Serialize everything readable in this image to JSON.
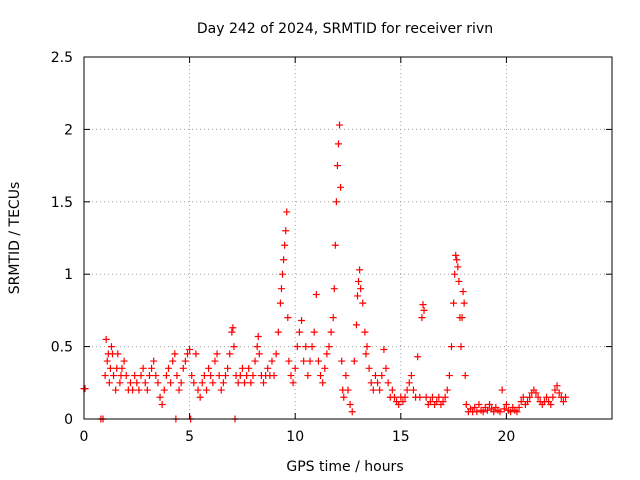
{
  "chart_data": {
    "type": "scatter",
    "title": "Day 242 of 2024, SRMTID for receiver rivn",
    "xlabel": "GPS time / hours",
    "ylabel": "SRMTID / TECUs",
    "xlim": [
      0,
      25
    ],
    "ylim": [
      0,
      2.5
    ],
    "xticks": [
      0,
      5,
      10,
      15,
      20
    ],
    "xtick_labels": [
      "0",
      "5",
      "10",
      "15",
      "20"
    ],
    "yticks": [
      0,
      0.5,
      1,
      1.5,
      2,
      2.5
    ],
    "ytick_labels": [
      "0",
      "0.5",
      "1",
      "1.5",
      "2",
      "2.5"
    ],
    "grid": true,
    "marker": "+",
    "series": [
      {
        "name": "SRMTID",
        "color": "#ff0000",
        "points": [
          [
            0.0,
            0.21
          ],
          [
            0.05,
            0.21
          ],
          [
            0.8,
            0.0
          ],
          [
            0.9,
            0.0
          ],
          [
            1.0,
            0.3
          ],
          [
            1.05,
            0.55
          ],
          [
            1.1,
            0.4
          ],
          [
            1.15,
            0.45
          ],
          [
            1.2,
            0.25
          ],
          [
            1.25,
            0.35
          ],
          [
            1.3,
            0.5
          ],
          [
            1.35,
            0.45
          ],
          [
            1.4,
            0.3
          ],
          [
            1.5,
            0.2
          ],
          [
            1.55,
            0.35
          ],
          [
            1.6,
            0.45
          ],
          [
            1.7,
            0.25
          ],
          [
            1.75,
            0.3
          ],
          [
            1.8,
            0.35
          ],
          [
            1.9,
            0.4
          ],
          [
            2.0,
            0.3
          ],
          [
            2.1,
            0.2
          ],
          [
            2.2,
            0.25
          ],
          [
            2.3,
            0.2
          ],
          [
            2.4,
            0.3
          ],
          [
            2.5,
            0.25
          ],
          [
            2.6,
            0.2
          ],
          [
            2.7,
            0.3
          ],
          [
            2.8,
            0.35
          ],
          [
            2.9,
            0.25
          ],
          [
            3.0,
            0.2
          ],
          [
            3.1,
            0.3
          ],
          [
            3.2,
            0.35
          ],
          [
            3.3,
            0.4
          ],
          [
            3.4,
            0.3
          ],
          [
            3.5,
            0.25
          ],
          [
            3.6,
            0.15
          ],
          [
            3.7,
            0.1
          ],
          [
            3.8,
            0.2
          ],
          [
            3.9,
            0.3
          ],
          [
            4.0,
            0.35
          ],
          [
            4.1,
            0.25
          ],
          [
            4.2,
            0.4
          ],
          [
            4.3,
            0.45
          ],
          [
            4.35,
            0.0
          ],
          [
            4.4,
            0.3
          ],
          [
            4.5,
            0.2
          ],
          [
            4.6,
            0.25
          ],
          [
            4.7,
            0.35
          ],
          [
            4.8,
            0.4
          ],
          [
            4.9,
            0.45
          ],
          [
            5.0,
            0.48
          ],
          [
            5.05,
            0.0
          ],
          [
            5.1,
            0.3
          ],
          [
            5.2,
            0.25
          ],
          [
            5.3,
            0.45
          ],
          [
            5.4,
            0.2
          ],
          [
            5.5,
            0.15
          ],
          [
            5.6,
            0.25
          ],
          [
            5.7,
            0.3
          ],
          [
            5.8,
            0.2
          ],
          [
            5.9,
            0.35
          ],
          [
            6.0,
            0.3
          ],
          [
            6.1,
            0.25
          ],
          [
            6.2,
            0.4
          ],
          [
            6.3,
            0.45
          ],
          [
            6.4,
            0.3
          ],
          [
            6.5,
            0.2
          ],
          [
            6.6,
            0.25
          ],
          [
            6.7,
            0.3
          ],
          [
            6.8,
            0.35
          ],
          [
            6.9,
            0.45
          ],
          [
            7.0,
            0.6
          ],
          [
            7.05,
            0.63
          ],
          [
            7.1,
            0.5
          ],
          [
            7.15,
            0.0
          ],
          [
            7.2,
            0.3
          ],
          [
            7.3,
            0.25
          ],
          [
            7.4,
            0.3
          ],
          [
            7.5,
            0.35
          ],
          [
            7.6,
            0.25
          ],
          [
            7.7,
            0.3
          ],
          [
            7.8,
            0.35
          ],
          [
            7.9,
            0.25
          ],
          [
            8.0,
            0.3
          ],
          [
            8.1,
            0.4
          ],
          [
            8.2,
            0.5
          ],
          [
            8.25,
            0.57
          ],
          [
            8.3,
            0.45
          ],
          [
            8.4,
            0.3
          ],
          [
            8.5,
            0.25
          ],
          [
            8.6,
            0.3
          ],
          [
            8.7,
            0.35
          ],
          [
            8.8,
            0.3
          ],
          [
            8.9,
            0.4
          ],
          [
            9.0,
            0.3
          ],
          [
            9.1,
            0.45
          ],
          [
            9.2,
            0.6
          ],
          [
            9.3,
            0.8
          ],
          [
            9.35,
            0.9
          ],
          [
            9.4,
            1.0
          ],
          [
            9.45,
            1.1
          ],
          [
            9.5,
            1.2
          ],
          [
            9.55,
            1.3
          ],
          [
            9.6,
            1.43
          ],
          [
            9.65,
            0.7
          ],
          [
            9.7,
            0.4
          ],
          [
            9.8,
            0.3
          ],
          [
            9.9,
            0.25
          ],
          [
            10.0,
            0.35
          ],
          [
            10.1,
            0.5
          ],
          [
            10.2,
            0.6
          ],
          [
            10.3,
            0.68
          ],
          [
            10.4,
            0.4
          ],
          [
            10.5,
            0.5
          ],
          [
            10.6,
            0.3
          ],
          [
            10.7,
            0.4
          ],
          [
            10.8,
            0.5
          ],
          [
            10.9,
            0.6
          ],
          [
            11.0,
            0.86
          ],
          [
            11.1,
            0.4
          ],
          [
            11.2,
            0.3
          ],
          [
            11.3,
            0.25
          ],
          [
            11.4,
            0.35
          ],
          [
            11.5,
            0.45
          ],
          [
            11.6,
            0.5
          ],
          [
            11.7,
            0.6
          ],
          [
            11.8,
            0.7
          ],
          [
            11.85,
            0.9
          ],
          [
            11.9,
            1.2
          ],
          [
            11.95,
            1.5
          ],
          [
            12.0,
            1.75
          ],
          [
            12.05,
            1.9
          ],
          [
            12.1,
            2.03
          ],
          [
            12.15,
            1.6
          ],
          [
            12.2,
            0.4
          ],
          [
            12.25,
            0.2
          ],
          [
            12.3,
            0.15
          ],
          [
            12.4,
            0.3
          ],
          [
            12.5,
            0.2
          ],
          [
            12.6,
            0.1
          ],
          [
            12.7,
            0.05
          ],
          [
            12.8,
            0.4
          ],
          [
            12.9,
            0.65
          ],
          [
            12.95,
            0.85
          ],
          [
            13.0,
            0.95
          ],
          [
            13.05,
            1.03
          ],
          [
            13.1,
            0.9
          ],
          [
            13.2,
            0.8
          ],
          [
            13.3,
            0.6
          ],
          [
            13.35,
            0.45
          ],
          [
            13.4,
            0.5
          ],
          [
            13.5,
            0.35
          ],
          [
            13.6,
            0.25
          ],
          [
            13.7,
            0.2
          ],
          [
            13.8,
            0.3
          ],
          [
            13.9,
            0.25
          ],
          [
            14.0,
            0.2
          ],
          [
            14.1,
            0.3
          ],
          [
            14.2,
            0.48
          ],
          [
            14.3,
            0.35
          ],
          [
            14.4,
            0.25
          ],
          [
            14.5,
            0.15
          ],
          [
            14.6,
            0.2
          ],
          [
            14.7,
            0.15
          ],
          [
            14.8,
            0.12
          ],
          [
            14.9,
            0.1
          ],
          [
            15.0,
            0.15
          ],
          [
            15.1,
            0.12
          ],
          [
            15.2,
            0.15
          ],
          [
            15.3,
            0.2
          ],
          [
            15.4,
            0.25
          ],
          [
            15.5,
            0.3
          ],
          [
            15.6,
            0.2
          ],
          [
            15.7,
            0.15
          ],
          [
            15.8,
            0.43
          ],
          [
            15.9,
            0.15
          ],
          [
            16.0,
            0.7
          ],
          [
            16.05,
            0.79
          ],
          [
            16.1,
            0.75
          ],
          [
            16.2,
            0.15
          ],
          [
            16.3,
            0.1
          ],
          [
            16.4,
            0.12
          ],
          [
            16.5,
            0.15
          ],
          [
            16.6,
            0.1
          ],
          [
            16.7,
            0.12
          ],
          [
            16.8,
            0.15
          ],
          [
            16.9,
            0.1
          ],
          [
            17.0,
            0.12
          ],
          [
            17.1,
            0.15
          ],
          [
            17.2,
            0.2
          ],
          [
            17.3,
            0.3
          ],
          [
            17.4,
            0.5
          ],
          [
            17.5,
            0.8
          ],
          [
            17.55,
            1.0
          ],
          [
            17.6,
            1.13
          ],
          [
            17.65,
            1.1
          ],
          [
            17.7,
            1.05
          ],
          [
            17.75,
            0.95
          ],
          [
            17.8,
            0.7
          ],
          [
            17.85,
            0.5
          ],
          [
            17.9,
            0.7
          ],
          [
            17.95,
            0.88
          ],
          [
            18.0,
            0.8
          ],
          [
            18.05,
            0.3
          ],
          [
            18.1,
            0.1
          ],
          [
            18.2,
            0.05
          ],
          [
            18.3,
            0.07
          ],
          [
            18.4,
            0.05
          ],
          [
            18.5,
            0.08
          ],
          [
            18.6,
            0.05
          ],
          [
            18.7,
            0.1
          ],
          [
            18.8,
            0.06
          ],
          [
            18.9,
            0.05
          ],
          [
            19.0,
            0.08
          ],
          [
            19.1,
            0.06
          ],
          [
            19.2,
            0.1
          ],
          [
            19.3,
            0.07
          ],
          [
            19.4,
            0.05
          ],
          [
            19.5,
            0.08
          ],
          [
            19.6,
            0.06
          ],
          [
            19.7,
            0.05
          ],
          [
            19.8,
            0.2
          ],
          [
            19.9,
            0.07
          ],
          [
            20.0,
            0.1
          ],
          [
            20.1,
            0.06
          ],
          [
            20.2,
            0.05
          ],
          [
            20.3,
            0.08
          ],
          [
            20.4,
            0.06
          ],
          [
            20.5,
            0.05
          ],
          [
            20.6,
            0.08
          ],
          [
            20.7,
            0.12
          ],
          [
            20.8,
            0.15
          ],
          [
            20.9,
            0.1
          ],
          [
            21.0,
            0.12
          ],
          [
            21.1,
            0.15
          ],
          [
            21.2,
            0.18
          ],
          [
            21.3,
            0.2
          ],
          [
            21.4,
            0.18
          ],
          [
            21.5,
            0.15
          ],
          [
            21.6,
            0.12
          ],
          [
            21.7,
            0.1
          ],
          [
            21.8,
            0.12
          ],
          [
            21.9,
            0.15
          ],
          [
            22.0,
            0.12
          ],
          [
            22.1,
            0.1
          ],
          [
            22.2,
            0.15
          ],
          [
            22.3,
            0.2
          ],
          [
            22.4,
            0.23
          ],
          [
            22.5,
            0.18
          ],
          [
            22.6,
            0.15
          ],
          [
            22.7,
            0.12
          ],
          [
            22.8,
            0.15
          ]
        ]
      }
    ]
  }
}
